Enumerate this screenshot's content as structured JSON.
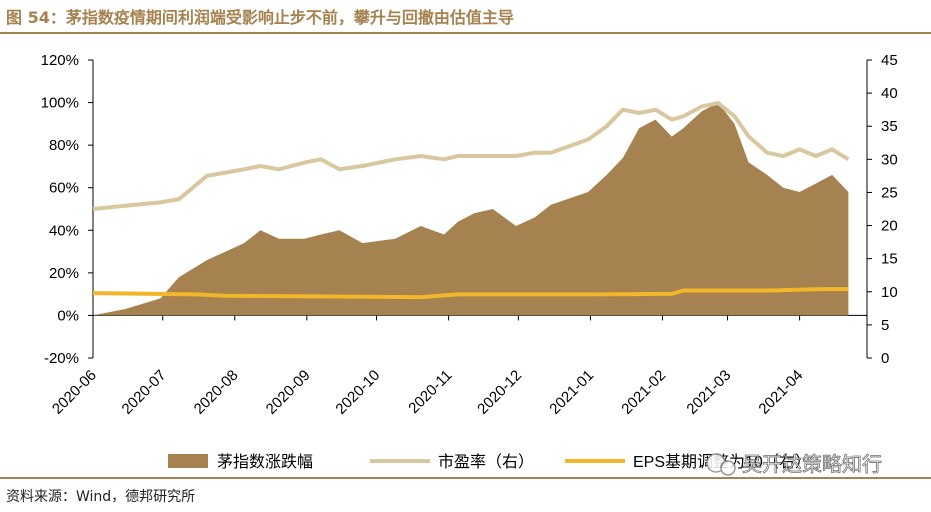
{
  "header": {
    "title": "图 54：茅指数疫情期间利润端受影响止步不前，攀升与回撤由估值主导"
  },
  "footer": {
    "source": "资料来源：Wind，德邦研究所"
  },
  "watermark": {
    "text": "吴开达策略知行",
    "icon": "wechat-icon"
  },
  "colors": {
    "area": "#a5824f",
    "pe": "#d9c7a0",
    "eps": "#f2b62a",
    "title": "#a5824f"
  },
  "chart_data": {
    "type": "area",
    "title": "茅指数疫情期间利润端受影响止步不前，攀升与回撤由估值主导",
    "x_categories": [
      "2020-06",
      "2020-07",
      "2020-08",
      "2020-09",
      "2020-10",
      "2020-11",
      "2020-12",
      "2021-01",
      "2021-02",
      "2021-03",
      "2021-04"
    ],
    "y_left": {
      "range": [
        -20,
        120
      ],
      "ticks": [
        "-20%",
        "0%",
        "20%",
        "40%",
        "60%",
        "80%",
        "100%",
        "120%"
      ]
    },
    "y_right": {
      "range": [
        0,
        45
      ],
      "ticks": [
        "0",
        "5",
        "10",
        "15",
        "20",
        "25",
        "30",
        "35",
        "40",
        "45"
      ]
    },
    "legend": {
      "placement": "bottom"
    },
    "series": [
      {
        "name": "茅指数涨跌幅",
        "kind": "area",
        "axis": "left",
        "x": [
          "2020-06-01",
          "2020-06-15",
          "2020-06-30",
          "2020-07-08",
          "2020-07-20",
          "2020-07-28",
          "2020-08-05",
          "2020-08-12",
          "2020-08-20",
          "2020-08-31",
          "2020-09-07",
          "2020-09-15",
          "2020-09-25",
          "2020-10-09",
          "2020-10-20",
          "2020-10-30",
          "2020-11-05",
          "2020-11-12",
          "2020-11-20",
          "2020-11-30",
          "2020-12-08",
          "2020-12-15",
          "2020-12-23",
          "2020-12-31",
          "2021-01-08",
          "2021-01-15",
          "2021-01-22",
          "2021-01-29",
          "2021-02-05",
          "2021-02-10",
          "2021-02-18",
          "2021-02-25",
          "2021-03-04",
          "2021-03-10",
          "2021-03-18",
          "2021-03-25",
          "2021-04-01",
          "2021-04-08",
          "2021-04-15",
          "2021-04-22"
        ],
        "values": [
          0,
          3,
          8,
          18,
          26,
          30,
          34,
          40,
          36,
          36,
          38,
          40,
          34,
          36,
          42,
          38,
          44,
          48,
          50,
          42,
          46,
          52,
          55,
          58,
          66,
          74,
          88,
          92,
          84,
          88,
          96,
          100,
          90,
          72,
          66,
          60,
          58,
          62,
          66,
          58
        ]
      },
      {
        "name": "市盈率（右）",
        "kind": "line",
        "axis": "right",
        "x": [
          "2020-06-01",
          "2020-06-15",
          "2020-06-30",
          "2020-07-08",
          "2020-07-20",
          "2020-07-28",
          "2020-08-05",
          "2020-08-12",
          "2020-08-20",
          "2020-08-31",
          "2020-09-07",
          "2020-09-15",
          "2020-09-25",
          "2020-10-09",
          "2020-10-20",
          "2020-10-30",
          "2020-11-05",
          "2020-11-12",
          "2020-11-20",
          "2020-11-30",
          "2020-12-08",
          "2020-12-15",
          "2020-12-23",
          "2020-12-31",
          "2021-01-08",
          "2021-01-15",
          "2021-01-22",
          "2021-01-29",
          "2021-02-05",
          "2021-02-10",
          "2021-02-18",
          "2021-02-25",
          "2021-03-04",
          "2021-03-10",
          "2021-03-18",
          "2021-03-25",
          "2021-04-01",
          "2021-04-08",
          "2021-04-15",
          "2021-04-22"
        ],
        "values": [
          22.5,
          23,
          23.5,
          24,
          27.5,
          28,
          28.5,
          29,
          28.5,
          29.5,
          30,
          28.5,
          29,
          30,
          30.5,
          30,
          30.5,
          30.5,
          30.5,
          30.5,
          31,
          31,
          32,
          33,
          35,
          37.5,
          37,
          37.5,
          36,
          36.5,
          38,
          38.5,
          36.5,
          33.5,
          31,
          30.5,
          31.5,
          30.5,
          31.5,
          30
        ]
      },
      {
        "name": "EPS基期调整为10（右）",
        "kind": "line",
        "axis": "right",
        "x": [
          "2020-06-01",
          "2020-07-15",
          "2020-07-28",
          "2020-09-05",
          "2020-10-20",
          "2020-11-05",
          "2021-01-01",
          "2021-02-05",
          "2021-02-10",
          "2021-03-20",
          "2021-04-10",
          "2021-04-22"
        ],
        "values": [
          9.8,
          9.6,
          9.4,
          9.3,
          9.2,
          9.6,
          9.6,
          9.7,
          10.2,
          10.2,
          10.4,
          10.4
        ]
      }
    ]
  }
}
